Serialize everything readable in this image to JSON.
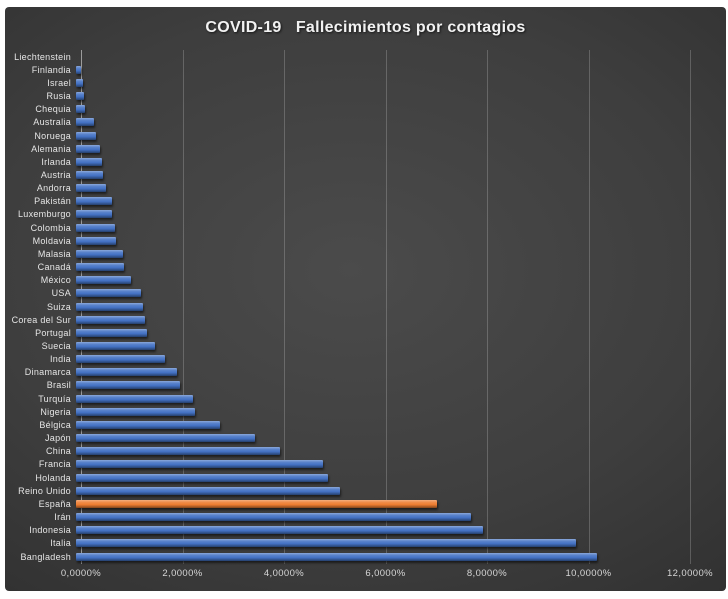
{
  "chart": {
    "title": "COVID-19   Fallecimientos por contagios"
  },
  "chart_data": {
    "type": "bar",
    "orientation": "horizontal",
    "title": "COVID-19   Fallecimientos por contagios",
    "categories": [
      "Liechtenstein",
      "Finlandia",
      "Israel",
      "Rusia",
      "Chequia",
      "Australia",
      "Noruega",
      "Alemania",
      "Irlanda",
      "Austria",
      "Andorra",
      "Pakistán",
      "Luxemburgo",
      "Colombia",
      "Moldavia",
      "Malasia",
      "Canadá",
      "México",
      "USA",
      "Suiza",
      "Corea del Sur",
      "Portugal",
      "Suecia",
      "India",
      "Dinamarca",
      "Brasil",
      "Turquía",
      "Nigeria",
      "Bélgica",
      "Japón",
      "China",
      "Francia",
      "Holanda",
      "Reino Unido",
      "España",
      "Irán",
      "Indonesia",
      "Italia",
      "Bangladesh"
    ],
    "values": [
      0.0,
      0.09,
      0.13,
      0.15,
      0.18,
      0.36,
      0.4,
      0.48,
      0.52,
      0.53,
      0.6,
      0.71,
      0.7,
      0.76,
      0.78,
      0.92,
      0.94,
      1.08,
      1.28,
      1.32,
      1.36,
      1.39,
      1.55,
      1.75,
      1.98,
      2.04,
      2.3,
      2.35,
      2.83,
      3.53,
      4.02,
      4.87,
      4.96,
      5.21,
      7.12,
      7.79,
      8.02,
      9.86,
      10.26
    ],
    "unit": "%",
    "value_format": "percent-comma-decimal",
    "xlabel": "",
    "ylabel": "",
    "xlim": [
      0,
      12
    ],
    "x_tick_labels": [
      "0,0000%",
      "2,0000%",
      "4,0000%",
      "6,0000%",
      "8,0000%",
      "10,0000%",
      "12,0000%"
    ],
    "grid": true,
    "legend": "none",
    "bar_color": "#4472C4",
    "highlight_index": 34,
    "highlight_category": "España",
    "highlight_color": "#ED7D31",
    "plot_background": "#3e3e3e",
    "gridline_color": "#6f6f6f",
    "text_color": "#e6e6e6"
  }
}
